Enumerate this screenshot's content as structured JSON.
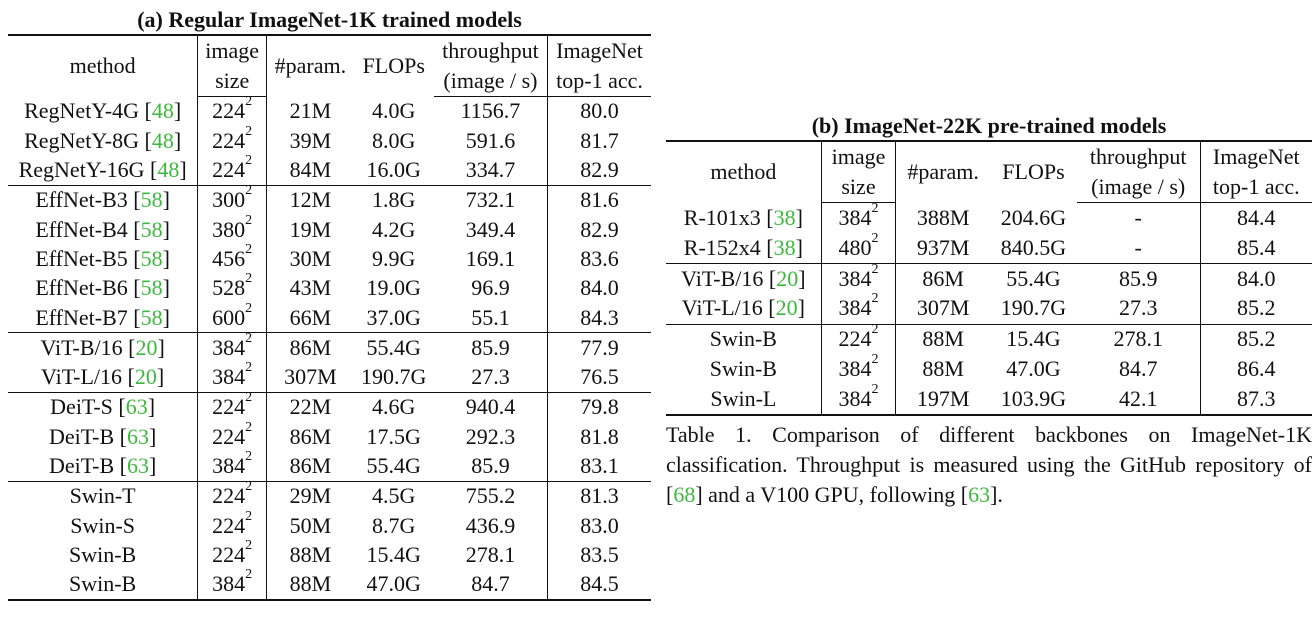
{
  "table_a": {
    "title": "(a) Regular ImageNet-1K trained models",
    "headers": {
      "method": "method",
      "image_1": "image",
      "image_2": "size",
      "params": "#param.",
      "flops": "FLOPs",
      "throughput_1": "throughput",
      "throughput_2": "(image / s)",
      "acc_1": "ImageNet",
      "acc_2": "top-1 acc."
    },
    "groups": [
      [
        {
          "method": "RegNetY-4G",
          "cite": "48",
          "size": "224",
          "exp": "2",
          "params": "21M",
          "flops": "4.0G",
          "throughput": "1156.7",
          "acc": "80.0"
        },
        {
          "method": "RegNetY-8G",
          "cite": "48",
          "size": "224",
          "exp": "2",
          "params": "39M",
          "flops": "8.0G",
          "throughput": "591.6",
          "acc": "81.7"
        },
        {
          "method": "RegNetY-16G",
          "cite": "48",
          "size": "224",
          "exp": "2",
          "params": "84M",
          "flops": "16.0G",
          "throughput": "334.7",
          "acc": "82.9"
        }
      ],
      [
        {
          "method": "EffNet-B3",
          "cite": "58",
          "size": "300",
          "exp": "2",
          "params": "12M",
          "flops": "1.8G",
          "throughput": "732.1",
          "acc": "81.6"
        },
        {
          "method": "EffNet-B4",
          "cite": "58",
          "size": "380",
          "exp": "2",
          "params": "19M",
          "flops": "4.2G",
          "throughput": "349.4",
          "acc": "82.9"
        },
        {
          "method": "EffNet-B5",
          "cite": "58",
          "size": "456",
          "exp": "2",
          "params": "30M",
          "flops": "9.9G",
          "throughput": "169.1",
          "acc": "83.6"
        },
        {
          "method": "EffNet-B6",
          "cite": "58",
          "size": "528",
          "exp": "2",
          "params": "43M",
          "flops": "19.0G",
          "throughput": "96.9",
          "acc": "84.0"
        },
        {
          "method": "EffNet-B7",
          "cite": "58",
          "size": "600",
          "exp": "2",
          "params": "66M",
          "flops": "37.0G",
          "throughput": "55.1",
          "acc": "84.3"
        }
      ],
      [
        {
          "method": "ViT-B/16",
          "cite": "20",
          "size": "384",
          "exp": "2",
          "params": "86M",
          "flops": "55.4G",
          "throughput": "85.9",
          "acc": "77.9"
        },
        {
          "method": "ViT-L/16",
          "cite": "20",
          "size": "384",
          "exp": "2",
          "params": "307M",
          "flops": "190.7G",
          "throughput": "27.3",
          "acc": "76.5"
        }
      ],
      [
        {
          "method": "DeiT-S",
          "cite": "63",
          "size": "224",
          "exp": "2",
          "params": "22M",
          "flops": "4.6G",
          "throughput": "940.4",
          "acc": "79.8"
        },
        {
          "method": "DeiT-B",
          "cite": "63",
          "size": "224",
          "exp": "2",
          "params": "86M",
          "flops": "17.5G",
          "throughput": "292.3",
          "acc": "81.8"
        },
        {
          "method": "DeiT-B",
          "cite": "63",
          "size": "384",
          "exp": "2",
          "params": "86M",
          "flops": "55.4G",
          "throughput": "85.9",
          "acc": "83.1"
        }
      ],
      [
        {
          "method": "Swin-T",
          "cite": "",
          "size": "224",
          "exp": "2",
          "params": "29M",
          "flops": "4.5G",
          "throughput": "755.2",
          "acc": "81.3"
        },
        {
          "method": "Swin-S",
          "cite": "",
          "size": "224",
          "exp": "2",
          "params": "50M",
          "flops": "8.7G",
          "throughput": "436.9",
          "acc": "83.0"
        },
        {
          "method": "Swin-B",
          "cite": "",
          "size": "224",
          "exp": "2",
          "params": "88M",
          "flops": "15.4G",
          "throughput": "278.1",
          "acc": "83.5"
        },
        {
          "method": "Swin-B",
          "cite": "",
          "size": "384",
          "exp": "2",
          "params": "88M",
          "flops": "47.0G",
          "throughput": "84.7",
          "acc": "84.5"
        }
      ]
    ]
  },
  "table_b": {
    "title": "(b) ImageNet-22K pre-trained models",
    "headers": {
      "method": "method",
      "image_1": "image",
      "image_2": "size",
      "params": "#param.",
      "flops": "FLOPs",
      "throughput_1": "throughput",
      "throughput_2": "(image / s)",
      "acc_1": "ImageNet",
      "acc_2": "top-1 acc."
    },
    "groups": [
      [
        {
          "method": "R-101x3",
          "cite": "38",
          "size": "384",
          "exp": "2",
          "params": "388M",
          "flops": "204.6G",
          "throughput": "-",
          "acc": "84.4"
        },
        {
          "method": "R-152x4",
          "cite": "38",
          "size": "480",
          "exp": "2",
          "params": "937M",
          "flops": "840.5G",
          "throughput": "-",
          "acc": "85.4"
        }
      ],
      [
        {
          "method": "ViT-B/16",
          "cite": "20",
          "size": "384",
          "exp": "2",
          "params": "86M",
          "flops": "55.4G",
          "throughput": "85.9",
          "acc": "84.0"
        },
        {
          "method": "ViT-L/16",
          "cite": "20",
          "size": "384",
          "exp": "2",
          "params": "307M",
          "flops": "190.7G",
          "throughput": "27.3",
          "acc": "85.2"
        }
      ],
      [
        {
          "method": "Swin-B",
          "cite": "",
          "size": "224",
          "exp": "2",
          "params": "88M",
          "flops": "15.4G",
          "throughput": "278.1",
          "acc": "85.2"
        },
        {
          "method": "Swin-B",
          "cite": "",
          "size": "384",
          "exp": "2",
          "params": "88M",
          "flops": "47.0G",
          "throughput": "84.7",
          "acc": "86.4"
        },
        {
          "method": "Swin-L",
          "cite": "",
          "size": "384",
          "exp": "2",
          "params": "197M",
          "flops": "103.9G",
          "throughput": "42.1",
          "acc": "87.3"
        }
      ]
    ]
  },
  "caption": {
    "part1": "Table 1. Comparison of different backbones on ImageNet-1K classification. Throughput is measured using the GitHub repository of [",
    "cite1": "68",
    "part2": "] and a V100 GPU, following [",
    "cite2": "63",
    "part3": "]."
  }
}
